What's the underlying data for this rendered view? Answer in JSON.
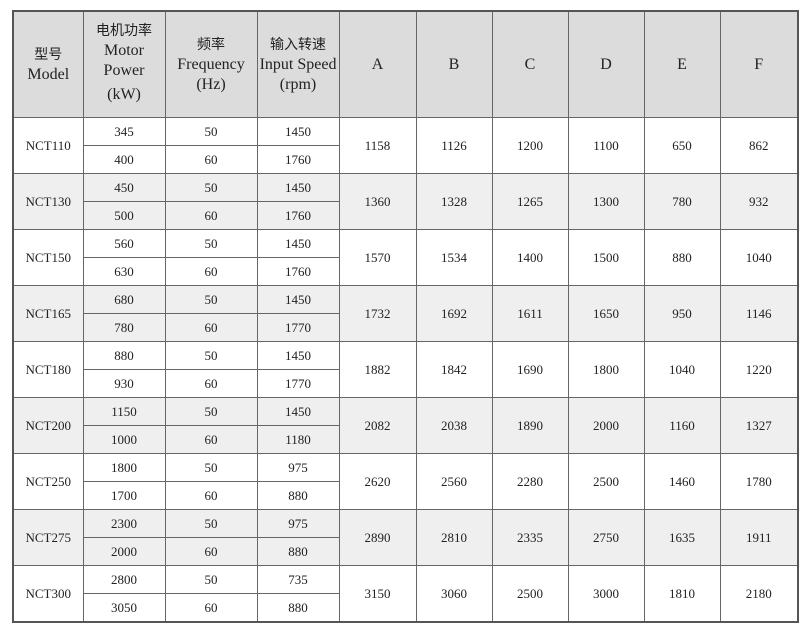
{
  "header": {
    "model": {
      "zh": "型号",
      "en": "Model"
    },
    "power": {
      "zh": "电机功率",
      "en": "Motor Power",
      "unit": "(kW)"
    },
    "frequency": {
      "zh": "频率",
      "en": "Frequency",
      "unit": "(Hz)"
    },
    "speed": {
      "zh": "输入转速",
      "en": "Input Speed",
      "unit": "(rpm)"
    },
    "dims": [
      "A",
      "B",
      "C",
      "D",
      "E",
      "F"
    ]
  },
  "rows": [
    {
      "model": "NCT110",
      "sub": [
        [
          "345",
          "50",
          "1450"
        ],
        [
          "400",
          "60",
          "1760"
        ]
      ],
      "dims": [
        "1158",
        "1126",
        "1200",
        "1100",
        "650",
        "862"
      ]
    },
    {
      "model": "NCT130",
      "sub": [
        [
          "450",
          "50",
          "1450"
        ],
        [
          "500",
          "60",
          "1760"
        ]
      ],
      "dims": [
        "1360",
        "1328",
        "1265",
        "1300",
        "780",
        "932"
      ]
    },
    {
      "model": "NCT150",
      "sub": [
        [
          "560",
          "50",
          "1450"
        ],
        [
          "630",
          "60",
          "1760"
        ]
      ],
      "dims": [
        "1570",
        "1534",
        "1400",
        "1500",
        "880",
        "1040"
      ]
    },
    {
      "model": "NCT165",
      "sub": [
        [
          "680",
          "50",
          "1450"
        ],
        [
          "780",
          "60",
          "1770"
        ]
      ],
      "dims": [
        "1732",
        "1692",
        "1611",
        "1650",
        "950",
        "1146"
      ]
    },
    {
      "model": "NCT180",
      "sub": [
        [
          "880",
          "50",
          "1450"
        ],
        [
          "930",
          "60",
          "1770"
        ]
      ],
      "dims": [
        "1882",
        "1842",
        "1690",
        "1800",
        "1040",
        "1220"
      ]
    },
    {
      "model": "NCT200",
      "sub": [
        [
          "1150",
          "50",
          "1450"
        ],
        [
          "1000",
          "60",
          "1180"
        ]
      ],
      "dims": [
        "2082",
        "2038",
        "1890",
        "2000",
        "1160",
        "1327"
      ]
    },
    {
      "model": "NCT250",
      "sub": [
        [
          "1800",
          "50",
          "975"
        ],
        [
          "1700",
          "60",
          "880"
        ]
      ],
      "dims": [
        "2620",
        "2560",
        "2280",
        "2500",
        "1460",
        "1780"
      ]
    },
    {
      "model": "NCT275",
      "sub": [
        [
          "2300",
          "50",
          "975"
        ],
        [
          "2000",
          "60",
          "880"
        ]
      ],
      "dims": [
        "2890",
        "2810",
        "2335",
        "2750",
        "1635",
        "1911"
      ]
    },
    {
      "model": "NCT300",
      "sub": [
        [
          "2800",
          "50",
          "735"
        ],
        [
          "3050",
          "60",
          "880"
        ]
      ],
      "dims": [
        "3150",
        "3060",
        "2500",
        "3000",
        "1810",
        "2180"
      ]
    }
  ]
}
